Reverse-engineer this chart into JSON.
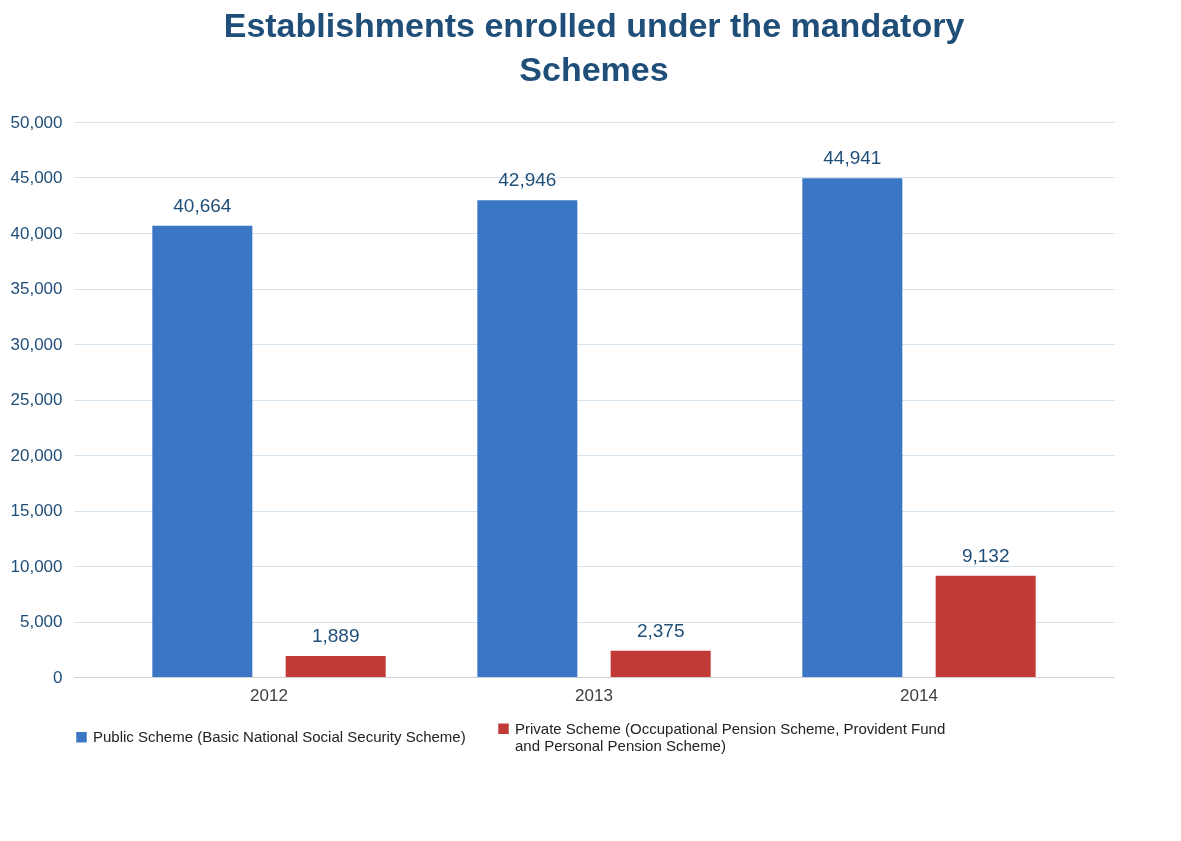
{
  "chart_data": {
    "type": "bar",
    "title": "Establishments enrolled under the mandatory Schemes",
    "categories": [
      "2012",
      "2013",
      "2014"
    ],
    "series": [
      {
        "name": "Public Scheme (Basic National Social Security Scheme)",
        "color": "#3b76c4",
        "values": [
          40664,
          42946,
          44941
        ],
        "value_labels": [
          "40,664",
          "42,946",
          "44,941"
        ]
      },
      {
        "name": "Private Scheme (Occupational Pension Scheme, Provident Fund and Personal Pension Scheme)",
        "color": "#c23a35",
        "values": [
          1889,
          2375,
          9132
        ],
        "value_labels": [
          "1,889",
          "2,375",
          "9,132"
        ]
      }
    ],
    "ylim": [
      0,
      50000
    ],
    "yticks": [
      0,
      {
        "value": 5000,
        "label": "5,000"
      },
      {
        "value": 10000,
        "label": "10,000"
      },
      {
        "value": 15000,
        "label": "15,000"
      },
      {
        "value": 20000,
        "label": "20,000"
      },
      {
        "value": 25000,
        "label": "25,000"
      },
      {
        "value": 30000,
        "label": "30,000"
      },
      {
        "value": 35000,
        "label": "35,000"
      },
      {
        "value": 40000,
        "label": "40,000"
      },
      {
        "value": 45000,
        "label": "45,000"
      },
      {
        "value": 50000,
        "label": "50,000"
      }
    ],
    "grid": "y",
    "legend": "bottom"
  }
}
